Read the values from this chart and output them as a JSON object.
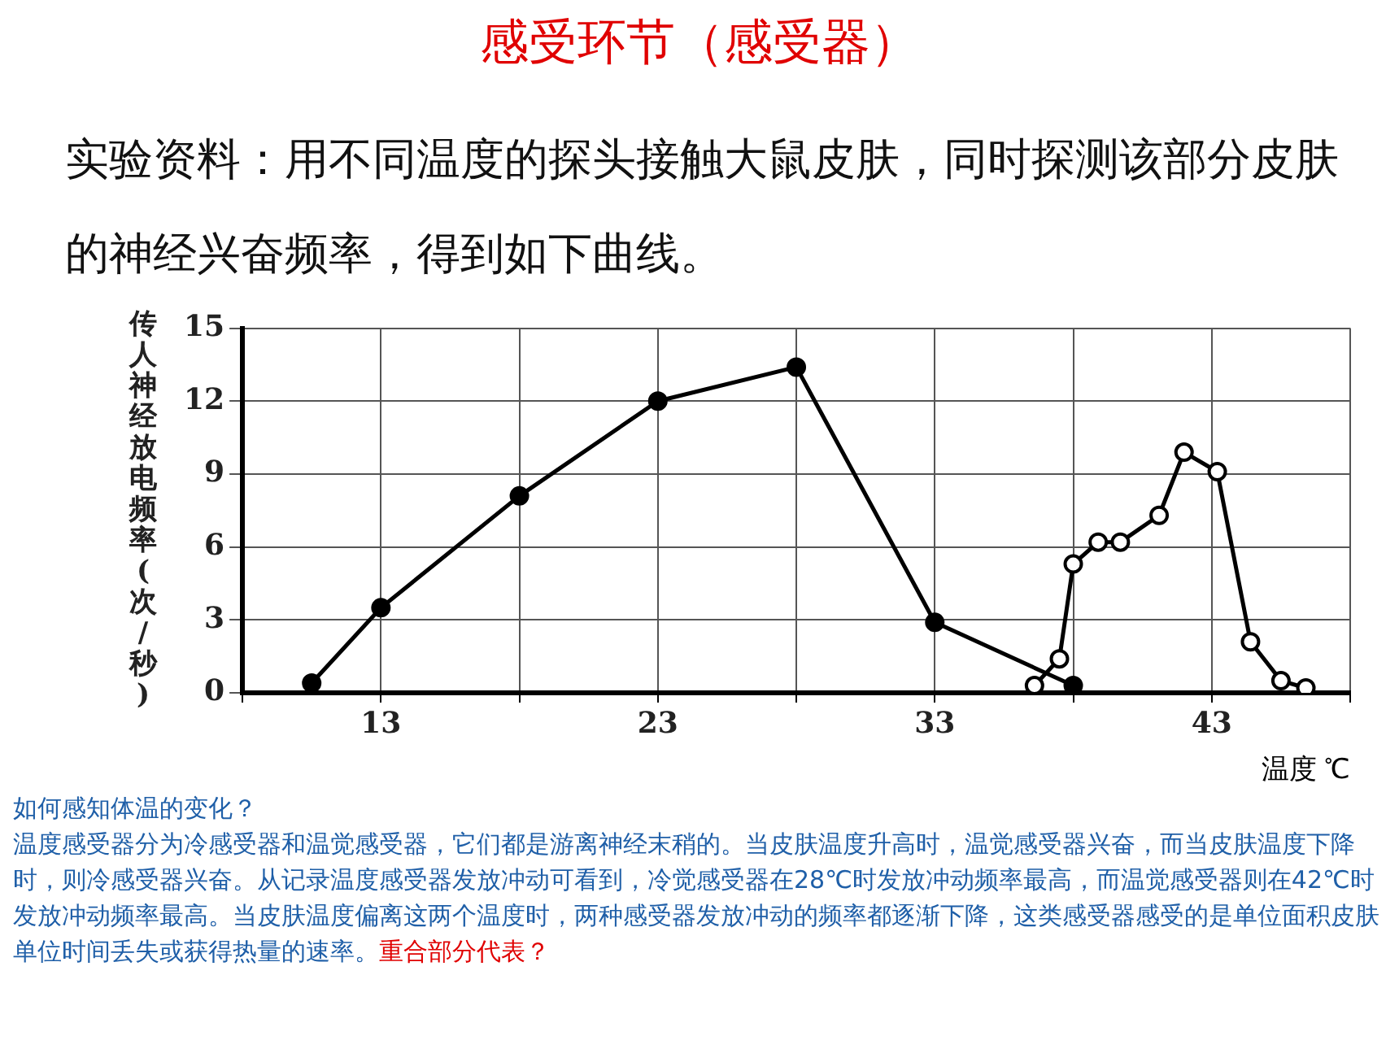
{
  "chart_data": {
    "type": "line",
    "title": "感受环节（感受器）",
    "subtitle": "实验资料：用不同温度的探头接触大鼠皮肤，同时探测该部分皮肤的神经兴奋频率，得到如下曲线。",
    "xlabel": "温度 ℃",
    "ylabel": "传人神经放电频率(次/秒)",
    "xlim": [
      8,
      48
    ],
    "xticks": [
      {
        "value": 8,
        "label": null
      },
      13,
      {
        "value": 18,
        "label": null
      },
      23,
      {
        "value": 28,
        "label": null
      },
      33,
      {
        "value": 38,
        "label": null
      },
      43,
      {
        "value": 48,
        "label": null
      }
    ],
    "ylim": [
      0,
      15
    ],
    "yticks": [
      0,
      3,
      6,
      9,
      12,
      15
    ],
    "grid": true,
    "marker": "circle",
    "line_style": "solid",
    "series": [
      {
        "color": "#000000",
        "x": [
          10.5,
          13,
          18,
          23,
          28,
          33,
          38
        ],
        "values": [
          0.4,
          3.5,
          8.1,
          12,
          13.4,
          2.9,
          0.3
        ]
      },
      {
        "color": "#000000",
        "x": [
          36.6,
          37.5,
          38,
          38.9,
          39.7,
          41.1,
          42,
          43.2,
          44.4,
          45.5,
          46.4
        ],
        "values": [
          0.3,
          1.4,
          5.3,
          6.2,
          6.2,
          7.3,
          9.9,
          9.1,
          2.1,
          0.5,
          0.2
        ]
      }
    ],
    "annotations": [
      "如何感知体温的变化？",
      "温度感受器分为冷感受器和温觉感受器，它们都是游离神经末稍的。当皮肤温度升高时，温觉感受器兴奋，而当皮肤温度下降时，则冷感受器兴奋。从记录温度感受器发放冲动可看到，冷觉感受器在28℃时发放冲动频率最高，而温觉感受器则在42℃时发放冲动频率最高。当皮肤温度偏离这两个温度时，两种感受器发放冲动的频率都逐渐下降，这类感受器感受的是单位面积皮肤单位时间丢失或获得热量的速率。",
      "重合部分代表？"
    ]
  }
}
